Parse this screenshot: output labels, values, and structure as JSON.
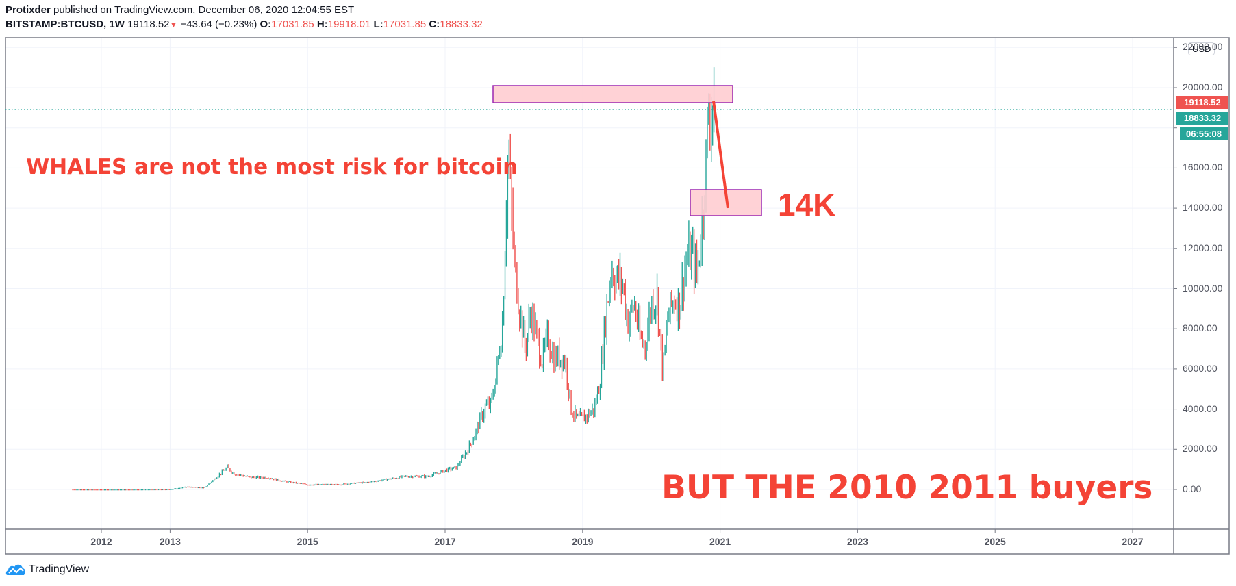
{
  "header": {
    "author": "Protixder",
    "published_text": "published on TradingView.com, December 06, 2020 12:04:55 EST",
    "symbol": "BITSTAMP:BTCUSD, 1W",
    "last_price": "19118.52",
    "change_icon": "triangle-down-icon",
    "change": "−43.64 (−0.23%)",
    "open_label": "O:",
    "open": "17031.85",
    "high_label": "H:",
    "high": "19918.01",
    "low_label": "L:",
    "low": "17031.85",
    "close_label": "C:",
    "close": "18833.32"
  },
  "price_scale": {
    "currency": "USD",
    "top_label": "22000.00",
    "labels": [
      "20000.00",
      "16000.00",
      "14000.00",
      "12000.00",
      "10000.00",
      "8000.00",
      "6000.00",
      "4000.00",
      "2000.00",
      "0.00"
    ],
    "last_price_badge": "19118.52",
    "close_badge": "18833.32",
    "countdown_badge": "06:55:08"
  },
  "time_scale": {
    "labels": [
      "2012",
      "2013",
      "2015",
      "2017",
      "2019",
      "2021",
      "2023",
      "2025",
      "2027"
    ]
  },
  "annotations": {
    "text1": "WHALES are not the most risk for bitcoin",
    "text2": "14K",
    "text3": "BUT THE 2010 2011 buyers"
  },
  "footer": {
    "brand": "TradingView",
    "logo_icon": "tradingview-cloud-icon"
  },
  "colors": {
    "up": "#26a69a",
    "down": "#ef5350",
    "annotation": "#f44336",
    "zone_fill": "#ffcdd2",
    "zone_border": "#9c27b0"
  },
  "chart_data": {
    "type": "bar",
    "title": "BITSTAMP:BTCUSD, 1W",
    "xlabel": "",
    "ylabel": "USD",
    "ylim": [
      -1800,
      22000
    ],
    "grid": true,
    "x_tick_labels": [
      "2012",
      "2013",
      "2015",
      "2017",
      "2019",
      "2021",
      "2023",
      "2025",
      "2027"
    ],
    "y_tick_labels": [
      "0.00",
      "2000.00",
      "4000.00",
      "6000.00",
      "8000.00",
      "10000.00",
      "12000.00",
      "14000.00",
      "16000.00",
      "20000.00",
      "22000.00"
    ],
    "series": [
      {
        "name": "BTCUSD weekly (approx. close)",
        "x": [
          "2011-08",
          "2012-01",
          "2012-06",
          "2013-01",
          "2013-04",
          "2013-07",
          "2013-11",
          "2013-12",
          "2014-03",
          "2014-06",
          "2014-09",
          "2015-01",
          "2015-06",
          "2015-11",
          "2016-01",
          "2016-06",
          "2016-10",
          "2017-01",
          "2017-03",
          "2017-05",
          "2017-06",
          "2017-08",
          "2017-09",
          "2017-10",
          "2017-11",
          "2017-12",
          "2018-01",
          "2018-02",
          "2018-03",
          "2018-04",
          "2018-05",
          "2018-06",
          "2018-07",
          "2018-08",
          "2018-09",
          "2018-10",
          "2018-11",
          "2018-12",
          "2019-01",
          "2019-03",
          "2019-04",
          "2019-05",
          "2019-06",
          "2019-07",
          "2019-08",
          "2019-09",
          "2019-10",
          "2019-11",
          "2019-12",
          "2020-01",
          "2020-02",
          "2020-03",
          "2020-04",
          "2020-05",
          "2020-06",
          "2020-07",
          "2020-08",
          "2020-09",
          "2020-10",
          "2020-11",
          "2020-12"
        ],
        "values": [
          10,
          5,
          7,
          15,
          140,
          90,
          1100,
          800,
          600,
          600,
          400,
          250,
          250,
          350,
          420,
          650,
          650,
          950,
          1100,
          2000,
          2600,
          4100,
          4200,
          5800,
          8200,
          17000,
          11500,
          9000,
          7000,
          8900,
          7500,
          6400,
          7600,
          6500,
          6600,
          6400,
          4000,
          3500,
          3500,
          4000,
          5300,
          8500,
          11000,
          10500,
          10200,
          8200,
          9300,
          7500,
          7200,
          9300,
          9600,
          5800,
          8800,
          9500,
          9200,
          11300,
          11700,
          10700,
          13800,
          18900,
          19118.52
        ]
      }
    ],
    "annotations": [
      {
        "type": "rectangle",
        "label": "resistance zone",
        "y_range": [
          19100,
          20000
        ],
        "x_range": [
          "2017-09",
          "2021-01"
        ]
      },
      {
        "type": "rectangle",
        "label": "target zone",
        "y_range": [
          13700,
          14900
        ],
        "x_range": [
          "2020-09",
          "2021-08"
        ]
      },
      {
        "type": "arrow_line",
        "from": {
          "x": "2020-12",
          "y": 19300
        },
        "to": {
          "x": "2021-02",
          "y": 13900
        }
      },
      {
        "type": "text",
        "text": "14K",
        "near": "target zone"
      },
      {
        "type": "text",
        "text": "WHALES are not the most risk for bitcoin"
      },
      {
        "type": "text",
        "text": "BUT THE 2010 2011 buyers"
      }
    ],
    "last_price_line": 19118.52,
    "last_close": 18833.32
  }
}
